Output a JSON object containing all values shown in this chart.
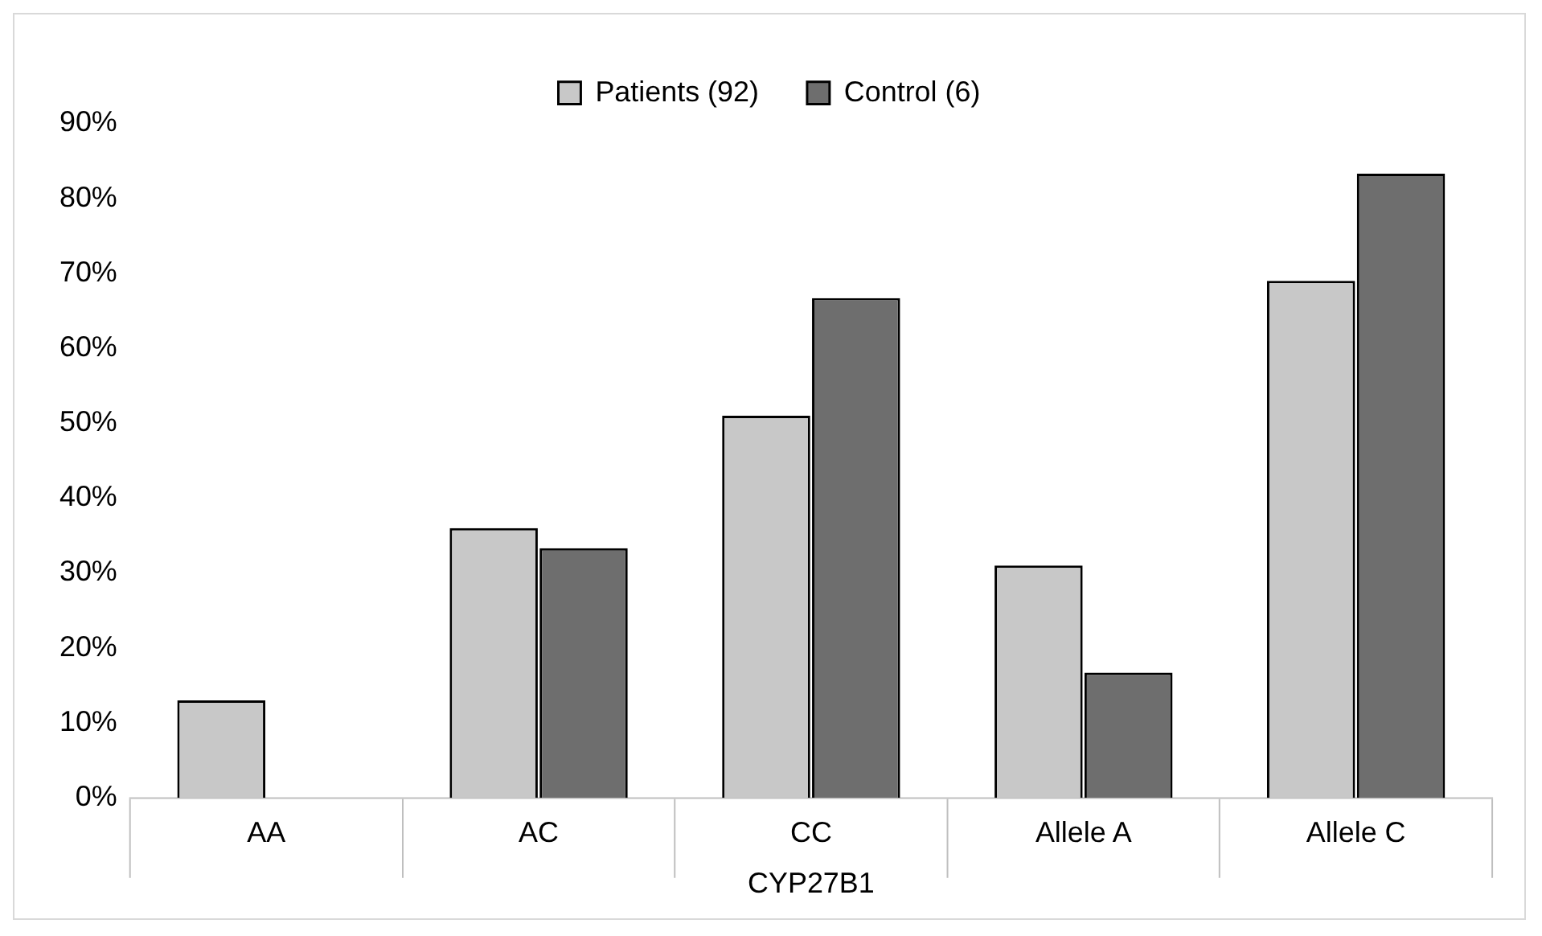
{
  "chart_data": {
    "type": "bar",
    "xlabel": "CYP27B1",
    "categories": [
      "AA",
      "AC",
      "CC",
      "Allele A",
      "Allele C"
    ],
    "series": [
      {
        "name": "Patients (92)",
        "color": "#c8c8c8",
        "values": [
          13,
          36,
          51,
          31,
          69
        ]
      },
      {
        "name": "Control (6)",
        "color": "#6e6e6e",
        "values": [
          0,
          33.3,
          66.7,
          16.7,
          83.3
        ]
      }
    ],
    "ylim": [
      0,
      90
    ],
    "yticks": [
      {
        "value": 0,
        "label": "0%"
      },
      {
        "value": 10,
        "label": "10%"
      },
      {
        "value": 20,
        "label": "20%"
      },
      {
        "value": 30,
        "label": "30%"
      },
      {
        "value": 40,
        "label": "40%"
      },
      {
        "value": 50,
        "label": "50%"
      },
      {
        "value": 60,
        "label": "60%"
      },
      {
        "value": 70,
        "label": "70%"
      },
      {
        "value": 80,
        "label": "80%"
      },
      {
        "value": 90,
        "label": "90%"
      }
    ],
    "grid": false,
    "legend": "top"
  }
}
